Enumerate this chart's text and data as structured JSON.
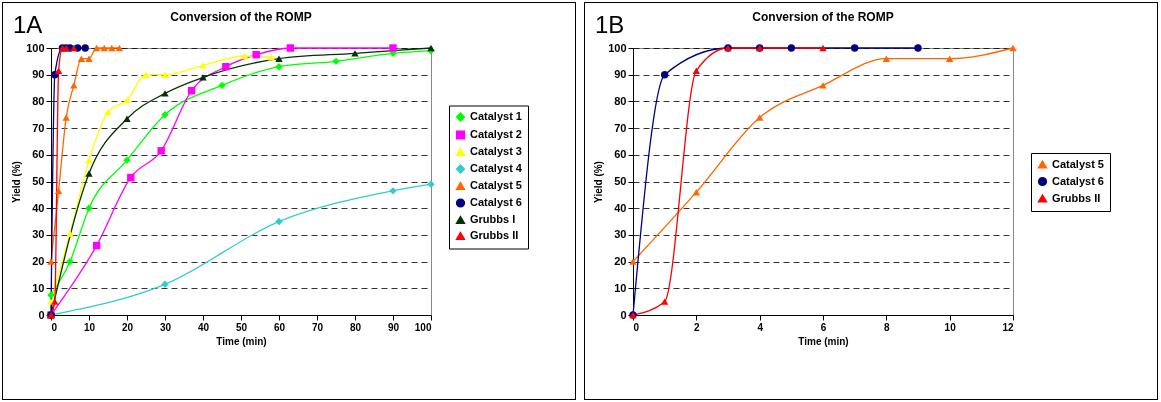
{
  "chart_data": [
    {
      "type": "line",
      "title": "Conversion of the ROMP",
      "xlabel": "Time (min)",
      "ylabel": "Yield (%)",
      "annotations": [
        "1A"
      ],
      "xlim": [
        0,
        100
      ],
      "xticks": [
        0,
        10,
        20,
        30,
        40,
        50,
        60,
        70,
        80,
        90,
        100
      ],
      "ylim": [
        0,
        100
      ],
      "yticks": [
        0,
        10,
        20,
        30,
        40,
        50,
        60,
        70,
        80,
        90,
        100
      ],
      "grid": "y",
      "legend": "right",
      "series": [
        {
          "name": "Catalyst 1",
          "color": "#00ff00",
          "marker": "diamond",
          "x": [
            0,
            5,
            10,
            20,
            30,
            45,
            60,
            75,
            90,
            100
          ],
          "values": [
            7.5,
            20,
            40,
            58,
            75,
            86,
            93,
            95,
            98,
            99
          ]
        },
        {
          "name": "Catalyst 2",
          "color": "#ff00ff",
          "marker": "square",
          "x": [
            0,
            12,
            21,
            29,
            37,
            46,
            54,
            63,
            90
          ],
          "values": [
            0,
            26,
            51.5,
            61.5,
            84,
            93,
            97.5,
            100,
            100
          ]
        },
        {
          "name": "Catalyst 3",
          "color": "#ffff00",
          "marker": "triangle",
          "x": [
            0,
            5,
            10,
            15,
            20,
            25,
            30,
            40,
            51,
            58
          ],
          "values": [
            5,
            30.5,
            58,
            76,
            80.5,
            90,
            90,
            93.5,
            97,
            96.5
          ]
        },
        {
          "name": "Catalyst 4",
          "color": "#33cccc",
          "marker": "diamond",
          "x": [
            0,
            30,
            60,
            90,
            100
          ],
          "values": [
            0,
            11.5,
            35,
            46.5,
            49
          ]
        },
        {
          "name": "Catalyst 5",
          "color": "#ff6600",
          "marker": "triangle",
          "x": [
            0,
            2,
            4,
            6,
            8,
            10,
            12,
            14,
            16,
            18
          ],
          "values": [
            20,
            46.5,
            74,
            86,
            96,
            96,
            100,
            100,
            100,
            100
          ]
        },
        {
          "name": "Catalyst 6",
          "color": "#000080",
          "marker": "circle",
          "x": [
            0,
            1,
            3,
            4,
            5,
            7,
            9
          ],
          "values": [
            0,
            90,
            100,
            100,
            100,
            100,
            100
          ]
        },
        {
          "name": "Grubbs I",
          "color": "#003300",
          "marker": "triangle",
          "x": [
            0,
            10,
            20,
            30,
            40,
            60,
            80,
            100
          ],
          "values": [
            0,
            53,
            73.5,
            83,
            89,
            96,
            98,
            100
          ]
        },
        {
          "name": "Grubbs II",
          "color": "#ff0000",
          "marker": "triangle",
          "x": [
            0,
            1,
            2,
            3,
            4,
            6
          ],
          "values": [
            0,
            5,
            91.5,
            100,
            100,
            100
          ]
        }
      ]
    },
    {
      "type": "line",
      "title": "Conversion of the ROMP",
      "xlabel": "Time (min)",
      "ylabel": "Yield (%)",
      "annotations": [
        "1B"
      ],
      "xlim": [
        0,
        12
      ],
      "xticks": [
        0,
        2,
        4,
        6,
        8,
        10,
        12
      ],
      "ylim": [
        0,
        100
      ],
      "yticks": [
        0,
        10,
        20,
        30,
        40,
        50,
        60,
        70,
        80,
        90,
        100
      ],
      "grid": "y",
      "legend": "right",
      "series": [
        {
          "name": "Catalyst 5",
          "color": "#ff6600",
          "marker": "triangle",
          "x": [
            0,
            2,
            4,
            6,
            8,
            10,
            12
          ],
          "values": [
            20,
            46,
            74,
            86,
            96,
            96,
            100
          ]
        },
        {
          "name": "Catalyst 6",
          "color": "#000080",
          "marker": "circle",
          "x": [
            0,
            1,
            3,
            4,
            5,
            7,
            9
          ],
          "values": [
            0,
            90,
            100,
            100,
            100,
            100,
            100
          ]
        },
        {
          "name": "Grubbs II",
          "color": "#ff0000",
          "marker": "triangle",
          "x": [
            0,
            1,
            2,
            3,
            4,
            6
          ],
          "values": [
            0,
            5,
            91.5,
            100,
            100,
            100
          ]
        }
      ]
    }
  ]
}
